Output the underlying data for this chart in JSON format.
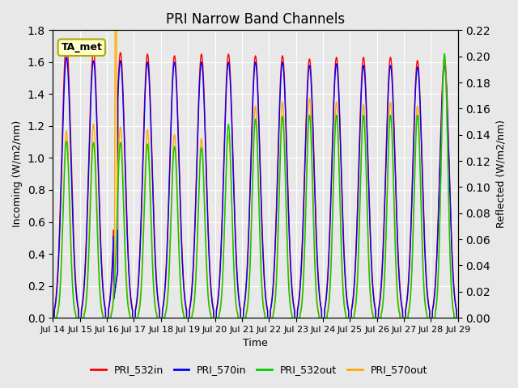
{
  "title": "PRI Narrow Band Channels",
  "xlabel": "Time",
  "ylabel_left": "Incoming (W/m2/nm)",
  "ylabel_right": "Reflected (W/m2/nm)",
  "annotation": "TA_met",
  "ylim_left": [
    0.0,
    1.8
  ],
  "ylim_right": [
    0.0,
    0.22
  ],
  "yticks_left": [
    0.0,
    0.2,
    0.4,
    0.6,
    0.8,
    1.0,
    1.2,
    1.4,
    1.6,
    1.8
  ],
  "yticks_right": [
    0.0,
    0.02,
    0.04,
    0.06,
    0.08,
    0.1,
    0.12,
    0.14,
    0.16,
    0.18,
    0.2,
    0.22
  ],
  "xticklabels": [
    "Jul 14",
    "Jul 15",
    "Jul 16",
    "Jul 17",
    "Jul 18",
    "Jul 19",
    "Jul 20",
    "Jul 21",
    "Jul 22",
    "Jul 23",
    "Jul 24",
    "Jul 25",
    "Jul 26",
    "Jul 27",
    "Jul 28",
    "Jul 29"
  ],
  "background_color": "#e8e8e8",
  "plot_bg_color": "#e8e8e8",
  "grid_color": "#ffffff",
  "series": [
    {
      "label": "PRI_532in",
      "color": "#ff0000",
      "scale": "left"
    },
    {
      "label": "PRI_570in",
      "color": "#0000ff",
      "scale": "left"
    },
    {
      "label": "PRI_532out",
      "color": "#00cc00",
      "scale": "right"
    },
    {
      "label": "PRI_570out",
      "color": "#ffaa00",
      "scale": "right"
    }
  ],
  "n_days": 15,
  "peak_left_532": [
    1.73,
    1.67,
    1.66,
    1.65,
    1.64,
    1.65,
    1.65,
    1.64,
    1.64,
    1.62,
    1.63,
    1.63,
    1.63,
    1.61,
    1.62
  ],
  "peak_left_570": [
    1.63,
    1.61,
    1.61,
    1.6,
    1.6,
    1.6,
    1.6,
    1.6,
    1.6,
    1.58,
    1.59,
    1.58,
    1.58,
    1.57,
    1.58
  ],
  "peak_right_532": [
    0.135,
    0.134,
    0.134,
    0.133,
    0.131,
    0.13,
    0.148,
    0.152,
    0.154,
    0.155,
    0.155,
    0.155,
    0.155,
    0.155,
    0.202
  ],
  "peak_right_570": [
    0.143,
    0.148,
    0.146,
    0.144,
    0.14,
    0.137,
    0.14,
    0.162,
    0.165,
    0.168,
    0.165,
    0.163,
    0.165,
    0.162,
    0.2
  ]
}
